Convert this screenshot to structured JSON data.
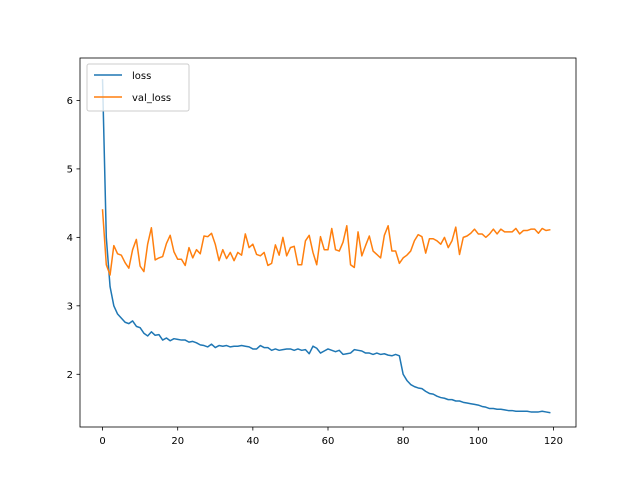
{
  "chart_data": {
    "type": "line",
    "title": "",
    "xlabel": "",
    "ylabel": "",
    "xlim": [
      -6,
      126
    ],
    "ylim": [
      1.23,
      6.62
    ],
    "xticks": [
      0,
      20,
      40,
      60,
      80,
      100,
      120
    ],
    "yticks": [
      2,
      3,
      4,
      5,
      6
    ],
    "grid": false,
    "legend": {
      "position": "top-left",
      "entries": [
        {
          "label": "loss",
          "color": "#1f77b4"
        },
        {
          "label": "val_loss",
          "color": "#ff7f0e"
        }
      ]
    },
    "series": [
      {
        "name": "loss",
        "color": "#1f77b4",
        "x": [
          0,
          1,
          2,
          3,
          4,
          5,
          6,
          7,
          8,
          9,
          10,
          11,
          12,
          13,
          14,
          15,
          16,
          17,
          18,
          19,
          20,
          21,
          22,
          23,
          24,
          25,
          26,
          27,
          28,
          29,
          30,
          31,
          32,
          33,
          34,
          35,
          36,
          37,
          38,
          39,
          40,
          41,
          42,
          43,
          44,
          45,
          46,
          47,
          48,
          49,
          50,
          51,
          52,
          53,
          54,
          55,
          56,
          57,
          58,
          59,
          60,
          61,
          62,
          63,
          64,
          65,
          66,
          67,
          68,
          69,
          70,
          71,
          72,
          73,
          74,
          75,
          76,
          77,
          78,
          79,
          80,
          81,
          82,
          83,
          84,
          85,
          86,
          87,
          88,
          89,
          90,
          91,
          92,
          93,
          94,
          95,
          96,
          97,
          98,
          99,
          100,
          101,
          102,
          103,
          104,
          105,
          106,
          107,
          108,
          109,
          110,
          111,
          112,
          113,
          114,
          115,
          116,
          117,
          118,
          119
        ],
        "values": [
          6.3,
          4.0,
          3.28,
          3.0,
          2.88,
          2.82,
          2.76,
          2.74,
          2.78,
          2.7,
          2.68,
          2.6,
          2.56,
          2.62,
          2.57,
          2.58,
          2.5,
          2.53,
          2.49,
          2.52,
          2.51,
          2.5,
          2.5,
          2.47,
          2.48,
          2.46,
          2.43,
          2.42,
          2.4,
          2.44,
          2.39,
          2.42,
          2.41,
          2.42,
          2.4,
          2.41,
          2.41,
          2.42,
          2.41,
          2.4,
          2.37,
          2.37,
          2.42,
          2.39,
          2.39,
          2.35,
          2.37,
          2.35,
          2.36,
          2.37,
          2.37,
          2.35,
          2.37,
          2.35,
          2.36,
          2.3,
          2.41,
          2.38,
          2.31,
          2.34,
          2.37,
          2.35,
          2.33,
          2.35,
          2.29,
          2.3,
          2.31,
          2.36,
          2.35,
          2.34,
          2.31,
          2.31,
          2.29,
          2.31,
          2.29,
          2.3,
          2.28,
          2.27,
          2.29,
          2.27,
          2.0,
          1.91,
          1.85,
          1.82,
          1.8,
          1.79,
          1.75,
          1.72,
          1.71,
          1.68,
          1.66,
          1.65,
          1.63,
          1.63,
          1.61,
          1.61,
          1.59,
          1.58,
          1.57,
          1.56,
          1.55,
          1.53,
          1.52,
          1.5,
          1.5,
          1.49,
          1.49,
          1.48,
          1.47,
          1.47,
          1.46,
          1.46,
          1.46,
          1.46,
          1.45,
          1.45,
          1.45,
          1.46,
          1.45,
          1.44
        ]
      },
      {
        "name": "val_loss",
        "color": "#ff7f0e",
        "x": [
          0,
          1,
          2,
          3,
          4,
          5,
          6,
          7,
          8,
          9,
          10,
          11,
          12,
          13,
          14,
          15,
          16,
          17,
          18,
          19,
          20,
          21,
          22,
          23,
          24,
          25,
          26,
          27,
          28,
          29,
          30,
          31,
          32,
          33,
          34,
          35,
          36,
          37,
          38,
          39,
          40,
          41,
          42,
          43,
          44,
          45,
          46,
          47,
          48,
          49,
          50,
          51,
          52,
          53,
          54,
          55,
          56,
          57,
          58,
          59,
          60,
          61,
          62,
          63,
          64,
          65,
          66,
          67,
          68,
          69,
          70,
          71,
          72,
          73,
          74,
          75,
          76,
          77,
          78,
          79,
          80,
          81,
          82,
          83,
          84,
          85,
          86,
          87,
          88,
          89,
          90,
          91,
          92,
          93,
          94,
          95,
          96,
          97,
          98,
          99,
          100,
          101,
          102,
          103,
          104,
          105,
          106,
          107,
          108,
          109,
          110,
          111,
          112,
          113,
          114,
          115,
          116,
          117,
          118,
          119
        ],
        "values": [
          4.4,
          3.6,
          3.45,
          3.88,
          3.76,
          3.74,
          3.63,
          3.55,
          3.82,
          3.97,
          3.58,
          3.5,
          3.9,
          4.14,
          3.67,
          3.7,
          3.72,
          3.91,
          4.03,
          3.79,
          3.68,
          3.68,
          3.59,
          3.85,
          3.7,
          3.82,
          3.76,
          4.02,
          4.01,
          4.06,
          3.9,
          3.66,
          3.82,
          3.69,
          3.78,
          3.66,
          3.78,
          3.74,
          4.05,
          3.85,
          3.9,
          3.75,
          3.73,
          3.78,
          3.59,
          3.62,
          3.89,
          3.74,
          4.0,
          3.73,
          3.85,
          3.87,
          3.6,
          3.6,
          3.95,
          4.03,
          3.78,
          3.6,
          4.01,
          3.82,
          3.82,
          4.13,
          3.82,
          3.8,
          3.93,
          4.17,
          3.6,
          3.56,
          4.08,
          3.73,
          3.88,
          4.02,
          3.8,
          3.75,
          3.7,
          4.03,
          4.17,
          3.8,
          3.8,
          3.62,
          3.7,
          3.74,
          3.8,
          3.95,
          4.04,
          4.01,
          3.77,
          3.98,
          3.98,
          3.95,
          3.9,
          4.0,
          3.85,
          3.95,
          4.15,
          3.75,
          4.0,
          4.02,
          4.06,
          4.12,
          4.05,
          4.05,
          4.0,
          4.05,
          4.12,
          4.05,
          4.12,
          4.08,
          4.08,
          4.08,
          4.13,
          4.05,
          4.1,
          4.1,
          4.12,
          4.12,
          4.06,
          4.13,
          4.1,
          4.11
        ]
      }
    ]
  }
}
